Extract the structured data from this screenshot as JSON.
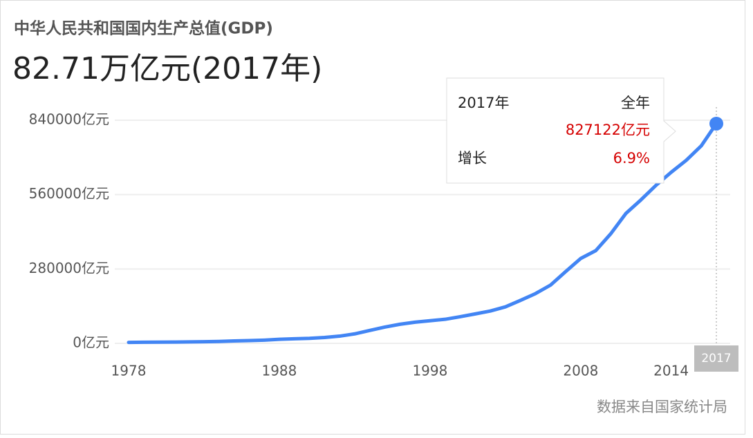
{
  "chart_data": {
    "type": "line",
    "title": "中华人民共和国国内生产总值(GDP)",
    "headline": "82.71万亿元(2017年)",
    "x": [
      1978,
      1979,
      1980,
      1981,
      1982,
      1983,
      1984,
      1985,
      1986,
      1987,
      1988,
      1989,
      1990,
      1991,
      1992,
      1993,
      1994,
      1995,
      1996,
      1997,
      1998,
      1999,
      2000,
      2001,
      2002,
      2003,
      2004,
      2005,
      2006,
      2007,
      2008,
      2009,
      2010,
      2011,
      2012,
      2013,
      2014,
      2015,
      2016,
      2017
    ],
    "values": [
      3679,
      4101,
      4588,
      4936,
      5373,
      6021,
      7279,
      9099,
      10376,
      12175,
      15180,
      17180,
      18873,
      22006,
      27195,
      35673,
      48638,
      61340,
      71814,
      79715,
      85196,
      90564,
      100280,
      110863,
      121717,
      137422,
      161840,
      187319,
      219439,
      270232,
      319516,
      349081,
      413030,
      489301,
      540367,
      595244,
      643974,
      689052,
      743586,
      827122
    ],
    "color": "#4285f4",
    "xlim": [
      1978,
      2017
    ],
    "xticks": [
      1978,
      1988,
      1998,
      2008,
      2014
    ],
    "ylim": [
      0,
      840000
    ],
    "yticks": [
      {
        "value": 0,
        "label": "0亿元"
      },
      {
        "value": 280000,
        "label": "280000亿元"
      },
      {
        "value": 560000,
        "label": "560000亿元"
      },
      {
        "value": 840000,
        "label": "840000亿元"
      }
    ],
    "grid": true,
    "highlight": {
      "x": 2017
    },
    "tooltip": {
      "year": "2017年",
      "period": "全年",
      "value": "827122亿元",
      "growth_label": "增长",
      "growth": "6.9%"
    },
    "source": "数据来自国家统计局"
  }
}
